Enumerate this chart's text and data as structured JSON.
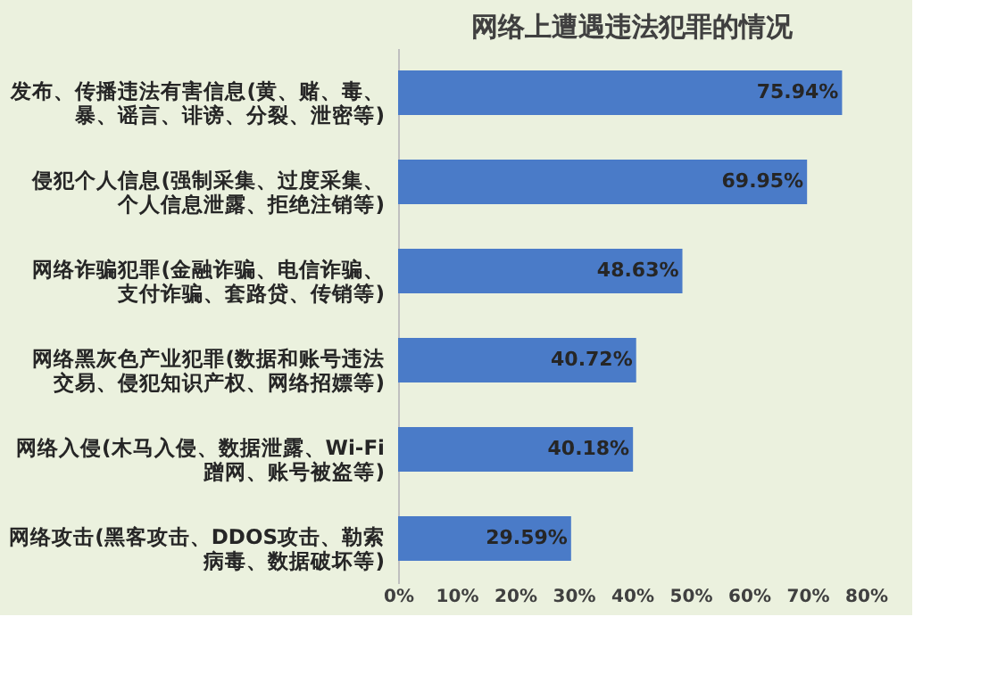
{
  "chart_data": {
    "type": "bar",
    "orientation": "horizontal",
    "title": "网络上遭遇违法犯罪的情况",
    "categories": [
      "发布、传播违法有害信息(黄、赌、毒、暴、谣言、诽谤、分裂、泄密等)",
      "侵犯个人信息(强制采集、过度采集、个人信息泄露、拒绝注销等)",
      "网络诈骗犯罪(金融诈骗、电信诈骗、支付诈骗、套路贷、传销等)",
      "网络黑灰色产业犯罪(数据和账号违法交易、侵犯知识产权、网络招嫖等)",
      "网络入侵(木马入侵、数据泄露、Wi-Fi蹭网、账号被盗等)",
      "网络攻击(黑客攻击、DDOS攻击、勒索病毒、数据破坏等)"
    ],
    "values": [
      75.94,
      69.95,
      48.63,
      40.72,
      40.18,
      29.59
    ],
    "value_labels": [
      "75.94%",
      "69.95%",
      "48.63%",
      "40.72%",
      "40.18%",
      "29.59%"
    ],
    "color": "#4a7bc8",
    "xlim": [
      0,
      80
    ],
    "xticks": [
      {
        "value": 0,
        "label": "0%"
      },
      {
        "value": 10,
        "label": "10%"
      },
      {
        "value": 20,
        "label": "20%"
      },
      {
        "value": 30,
        "label": "30%"
      },
      {
        "value": 40,
        "label": "40%"
      },
      {
        "value": 50,
        "label": "50%"
      },
      {
        "value": 60,
        "label": "60%"
      },
      {
        "value": 70,
        "label": "70%"
      },
      {
        "value": 80,
        "label": "80%"
      }
    ],
    "grid": false
  }
}
